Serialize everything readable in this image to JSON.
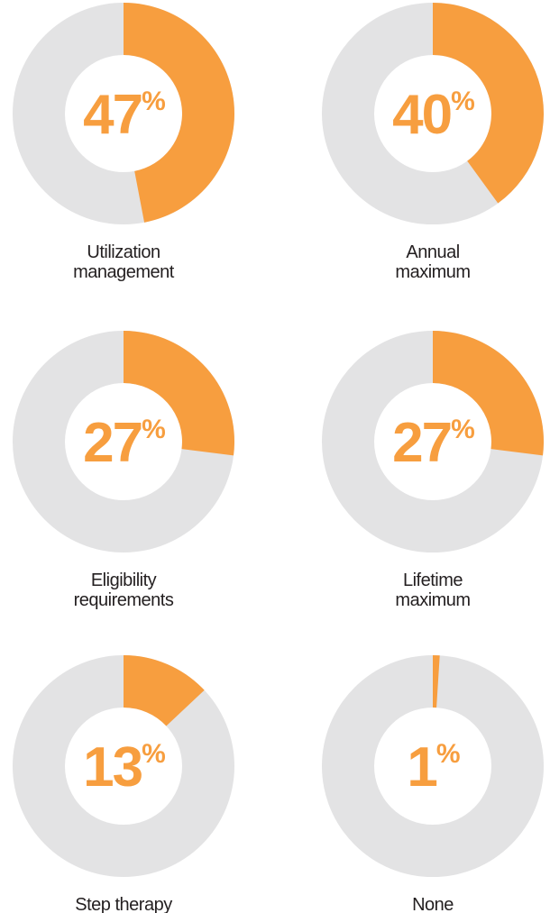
{
  "chart_data": [
    {
      "type": "pie",
      "title": "Utilization\nmanagement",
      "values": [
        47
      ],
      "value_labels": [
        "47%"
      ],
      "color": "#f79e3f",
      "track_color": "#e3e3e4"
    },
    {
      "type": "pie",
      "title": "Annual\nmaximum",
      "values": [
        40
      ],
      "value_labels": [
        "40%"
      ],
      "color": "#f79e3f",
      "track_color": "#e3e3e4"
    },
    {
      "type": "pie",
      "title": "Eligibility\nrequirements",
      "values": [
        27
      ],
      "value_labels": [
        "27%"
      ],
      "color": "#f79e3f",
      "track_color": "#e3e3e4"
    },
    {
      "type": "pie",
      "title": "Lifetime\nmaximum",
      "values": [
        27
      ],
      "value_labels": [
        "27%"
      ],
      "color": "#f79e3f",
      "track_color": "#e3e3e4"
    },
    {
      "type": "pie",
      "title": "Step therapy",
      "values": [
        13
      ],
      "value_labels": [
        "13%"
      ],
      "color": "#f79e3f",
      "track_color": "#e3e3e4"
    },
    {
      "type": "pie",
      "title": "None",
      "values": [
        1
      ],
      "value_labels": [
        "1%"
      ],
      "color": "#f79e3f",
      "track_color": "#e3e3e4"
    }
  ]
}
